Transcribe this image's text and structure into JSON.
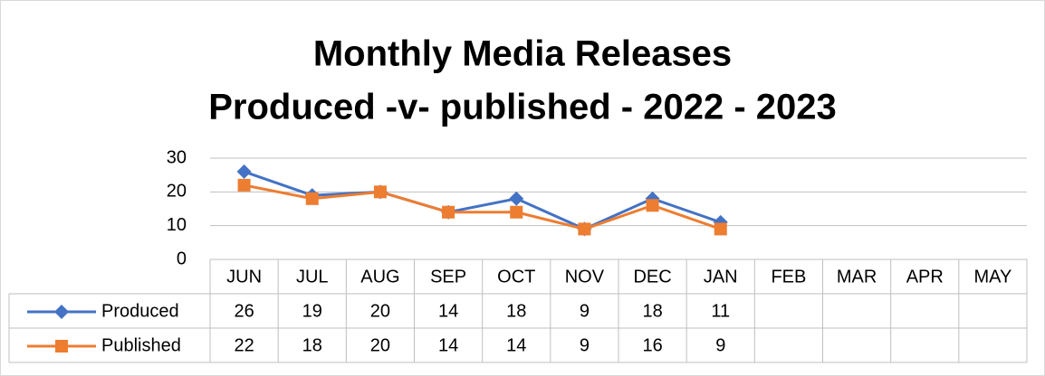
{
  "chart_data": {
    "type": "line",
    "title": "Monthly Media Releases",
    "subtitle": "Produced -v- published - 2022 - 2023",
    "categories": [
      "JUN",
      "JUL",
      "AUG",
      "SEP",
      "OCT",
      "NOV",
      "DEC",
      "JAN",
      "FEB",
      "MAR",
      "APR",
      "MAY"
    ],
    "series": [
      {
        "name": "Produced",
        "color": "#4472c4",
        "marker": "diamond",
        "values": [
          26,
          19,
          20,
          14,
          18,
          9,
          18,
          11,
          null,
          null,
          null,
          null
        ]
      },
      {
        "name": "Published",
        "color": "#ed7d31",
        "marker": "square",
        "values": [
          22,
          18,
          20,
          14,
          14,
          9,
          16,
          9,
          null,
          null,
          null,
          null
        ]
      }
    ],
    "ylim": [
      0,
      30
    ],
    "yticks": [
      0,
      10,
      20,
      30
    ],
    "grid": true,
    "data_table": true
  }
}
